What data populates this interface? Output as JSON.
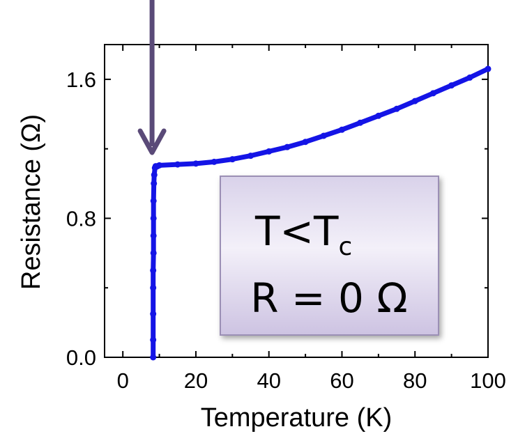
{
  "chart_data": {
    "type": "scatter",
    "title": "",
    "xlabel": "Temperature (K)",
    "ylabel": "Resistance (Ω)",
    "xlim": [
      -5,
      100
    ],
    "ylim": [
      0,
      1.8
    ],
    "x_ticks": [
      "0",
      "20",
      "40",
      "60",
      "80",
      "100"
    ],
    "y_ticks": [
      "0.0",
      "0.8",
      "1.6"
    ],
    "grid": false,
    "marker_color": "#1414e6",
    "arrow_color": "#5a4a78",
    "arrow_x": 8,
    "series": [
      {
        "points": [
          [
            8.3,
            0.0
          ],
          [
            8.3,
            0.1
          ],
          [
            8.3,
            0.25
          ],
          [
            8.3,
            0.4
          ],
          [
            8.3,
            0.5
          ],
          [
            8.4,
            0.6
          ],
          [
            8.4,
            0.7
          ],
          [
            8.4,
            0.8
          ],
          [
            8.4,
            0.9
          ],
          [
            8.5,
            1.0
          ],
          [
            8.6,
            1.05
          ],
          [
            8.8,
            1.09
          ],
          [
            9.0,
            1.1
          ],
          [
            9.5,
            1.1
          ],
          [
            10,
            1.105
          ],
          [
            15,
            1.11
          ],
          [
            20,
            1.115
          ],
          [
            25,
            1.125
          ],
          [
            30,
            1.14
          ],
          [
            35,
            1.16
          ],
          [
            40,
            1.185
          ],
          [
            45,
            1.21
          ],
          [
            50,
            1.24
          ],
          [
            55,
            1.275
          ],
          [
            60,
            1.31
          ],
          [
            65,
            1.35
          ],
          [
            70,
            1.39
          ],
          [
            75,
            1.43
          ],
          [
            80,
            1.475
          ],
          [
            85,
            1.52
          ],
          [
            90,
            1.565
          ],
          [
            95,
            1.61
          ],
          [
            100,
            1.66
          ]
        ]
      }
    ],
    "annotation": {
      "line1_main": "T<T",
      "line1_sub": "c",
      "line2": "R = 0 Ω"
    }
  }
}
